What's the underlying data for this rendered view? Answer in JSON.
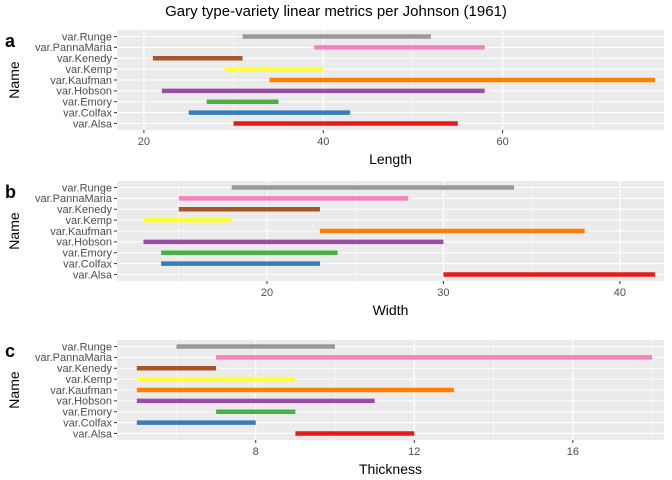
{
  "title": "Gary type-variety linear metrics per Johnson (1961)",
  "chart_data": [
    {
      "type": "range-bar",
      "panel_tag": "a",
      "xlabel": "Length",
      "ylabel": "Name",
      "xlim": [
        17,
        78
      ],
      "xticks": [
        20,
        40,
        60
      ],
      "grid": true,
      "categories": [
        "var.Alsa",
        "var.Colfax",
        "var.Emory",
        "var.Hobson",
        "var.Kaufman",
        "var.Kemp",
        "var.Kenedy",
        "var.PannaMaria",
        "var.Runge"
      ],
      "ranges": [
        [
          30,
          55
        ],
        [
          25,
          43
        ],
        [
          27,
          35
        ],
        [
          22,
          58
        ],
        [
          34,
          77
        ],
        [
          29,
          40
        ],
        [
          21,
          31
        ],
        [
          39,
          58
        ],
        [
          31,
          52
        ]
      ]
    },
    {
      "type": "range-bar",
      "panel_tag": "b",
      "xlabel": "Width",
      "ylabel": "Name",
      "xlim": [
        11.5,
        42.5
      ],
      "xticks": [
        20,
        30,
        40
      ],
      "grid": true,
      "categories": [
        "var.Alsa",
        "var.Colfax",
        "var.Emory",
        "var.Hobson",
        "var.Kaufman",
        "var.Kemp",
        "var.Kenedy",
        "var.PannaMaria",
        "var.Runge"
      ],
      "ranges": [
        [
          30,
          42
        ],
        [
          14,
          23
        ],
        [
          14,
          24
        ],
        [
          13,
          30
        ],
        [
          23,
          38
        ],
        [
          13,
          18
        ],
        [
          15,
          23
        ],
        [
          15,
          28
        ],
        [
          18,
          34
        ]
      ]
    },
    {
      "type": "range-bar",
      "panel_tag": "c",
      "xlabel": "Thickness",
      "ylabel": "Name",
      "xlim": [
        4.5,
        18.3
      ],
      "xticks": [
        8,
        12,
        16
      ],
      "grid": true,
      "categories": [
        "var.Alsa",
        "var.Colfax",
        "var.Emory",
        "var.Hobson",
        "var.Kaufman",
        "var.Kemp",
        "var.Kenedy",
        "var.PannaMaria",
        "var.Runge"
      ],
      "ranges": [
        [
          9,
          12
        ],
        [
          5,
          8
        ],
        [
          7,
          9
        ],
        [
          5,
          11
        ],
        [
          5,
          13
        ],
        [
          5,
          9
        ],
        [
          5,
          7
        ],
        [
          7,
          18
        ],
        [
          6,
          10
        ]
      ]
    }
  ],
  "colors": {
    "var.Alsa": "#e41a1c",
    "var.Colfax": "#377eb8",
    "var.Emory": "#4daf4a",
    "var.Hobson": "#984ea3",
    "var.Kaufman": "#ff7f00",
    "var.Kemp": "#ffff33",
    "var.Kenedy": "#a65628",
    "var.PannaMaria": "#f781bf",
    "var.Runge": "#999999",
    "panel_background": "#ebebeb",
    "grid_major": "#ffffff",
    "tick_text": "#4d4d4d"
  }
}
